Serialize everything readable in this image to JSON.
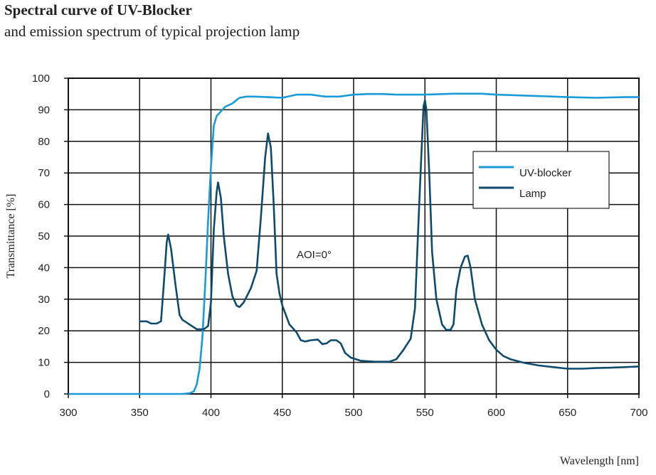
{
  "chart_data": {
    "type": "line",
    "title": "Spectral curve of UV-Blocker",
    "subtitle": "and emission spectrum of typical projection lamp",
    "xlabel": "Wavelength [nm]",
    "ylabel": "Transmittance [%]",
    "xlim": [
      300,
      700
    ],
    "ylim": [
      0,
      100
    ],
    "xticks": [
      300,
      350,
      400,
      450,
      500,
      550,
      600,
      650,
      700
    ],
    "yticks": [
      0,
      10,
      20,
      30,
      40,
      50,
      60,
      70,
      80,
      90,
      100
    ],
    "grid": true,
    "legend_position": "right",
    "annotation": "AOI=0°",
    "series": [
      {
        "name": "UV-blocker",
        "color": "#1a9ad6",
        "x": [
          300,
          380,
          385,
          388,
          390,
          392,
          394,
          396,
          398,
          400,
          402,
          404,
          407,
          410,
          415,
          420,
          425,
          430,
          440,
          450,
          460,
          470,
          480,
          490,
          500,
          510,
          520,
          530,
          550,
          570,
          590,
          600,
          620,
          640,
          650,
          670,
          690,
          700
        ],
        "y": [
          0,
          0,
          0.2,
          0.8,
          3,
          8,
          18,
          35,
          55,
          72,
          85,
          88,
          89.5,
          91,
          92,
          93.8,
          94.2,
          94.2,
          94,
          93.8,
          94.8,
          94.8,
          94.2,
          94.2,
          94.8,
          95,
          95,
          94.8,
          94.8,
          95.1,
          95.1,
          94.8,
          94.5,
          94.2,
          94,
          93.8,
          94,
          94
        ]
      },
      {
        "name": "Lamp",
        "color": "#0e4a6b",
        "x": [
          350,
          355,
          358,
          362,
          365,
          367,
          369,
          370,
          372,
          375,
          378,
          380,
          385,
          390,
          395,
          398,
          400,
          402,
          404,
          405,
          407,
          409,
          412,
          415,
          418,
          420,
          423,
          428,
          432,
          435,
          438,
          440,
          442,
          444,
          446,
          448,
          450,
          455,
          460,
          463,
          466,
          470,
          475,
          478,
          481,
          484,
          488,
          491,
          494,
          498,
          505,
          515,
          525,
          530,
          535,
          540,
          543,
          546,
          549,
          550,
          551,
          553,
          555,
          558,
          562,
          565,
          568,
          570,
          572,
          575,
          578,
          580,
          582,
          585,
          590,
          595,
          600,
          605,
          610,
          620,
          630,
          640,
          650,
          660,
          670,
          680,
          690,
          700
        ],
        "y": [
          23,
          23,
          22.3,
          22.3,
          23,
          35,
          48,
          50.5,
          46,
          35,
          25,
          23.5,
          22,
          20.5,
          20.5,
          21.5,
          29,
          52,
          64,
          67,
          62,
          50,
          38,
          31,
          28,
          27.5,
          29,
          33.5,
          39,
          56,
          75,
          82.5,
          78,
          60,
          38,
          32,
          28,
          22,
          19.5,
          17,
          16.6,
          17,
          17.2,
          15.8,
          16,
          17,
          17,
          16,
          13,
          11.5,
          10.5,
          10.2,
          10.2,
          11,
          14,
          17.5,
          27,
          60,
          91,
          93,
          90,
          70,
          45,
          30,
          22,
          20.3,
          20.3,
          22,
          33,
          40,
          43.5,
          43.8,
          40,
          30,
          22,
          17,
          14,
          12,
          11,
          9.8,
          9,
          8.5,
          8,
          8,
          8.2,
          8.3,
          8.5,
          8.7
        ]
      }
    ]
  }
}
